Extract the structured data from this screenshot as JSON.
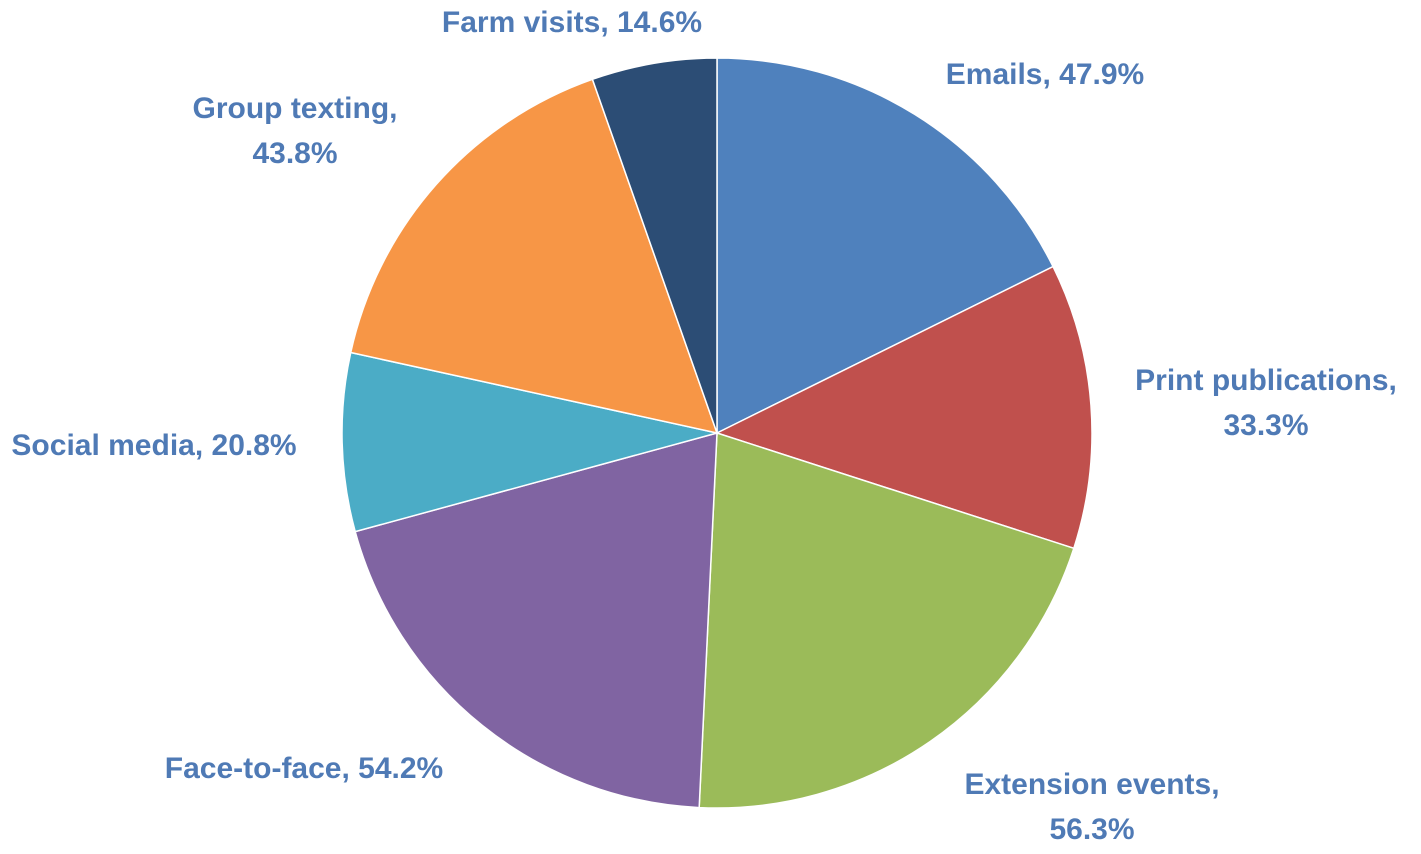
{
  "chart_data": {
    "type": "pie",
    "start_angle_deg": 0,
    "direction": "clockwise",
    "slices": [
      {
        "name": "Emails",
        "value": 47.9,
        "label_line1": "Emails, 47.9%",
        "label_line2": "",
        "color": "#4f81bd"
      },
      {
        "name": "Print publications",
        "value": 33.3,
        "label_line1": "Print publications,",
        "label_line2": "33.3%",
        "color": "#c0504d"
      },
      {
        "name": "Extension events",
        "value": 56.3,
        "label_line1": "Extension events,",
        "label_line2": "56.3%",
        "color": "#9bbb59"
      },
      {
        "name": "Face-to-face",
        "value": 54.2,
        "label_line1": "Face-to-face, 54.2%",
        "label_line2": "",
        "color": "#8064a2"
      },
      {
        "name": "Social media",
        "value": 20.8,
        "label_line1": "Social media, 20.8%",
        "label_line2": "",
        "color": "#4bacc6"
      },
      {
        "name": "Group texting",
        "value": 43.8,
        "label_line1": "Group texting,",
        "label_line2": "43.8%",
        "color": "#f79646"
      },
      {
        "name": "Farm visits",
        "value": 14.6,
        "label_line1": "Farm visits, 14.6%",
        "label_line2": "",
        "color": "#2c4d75"
      }
    ],
    "label_color": "#4f7ab5"
  }
}
